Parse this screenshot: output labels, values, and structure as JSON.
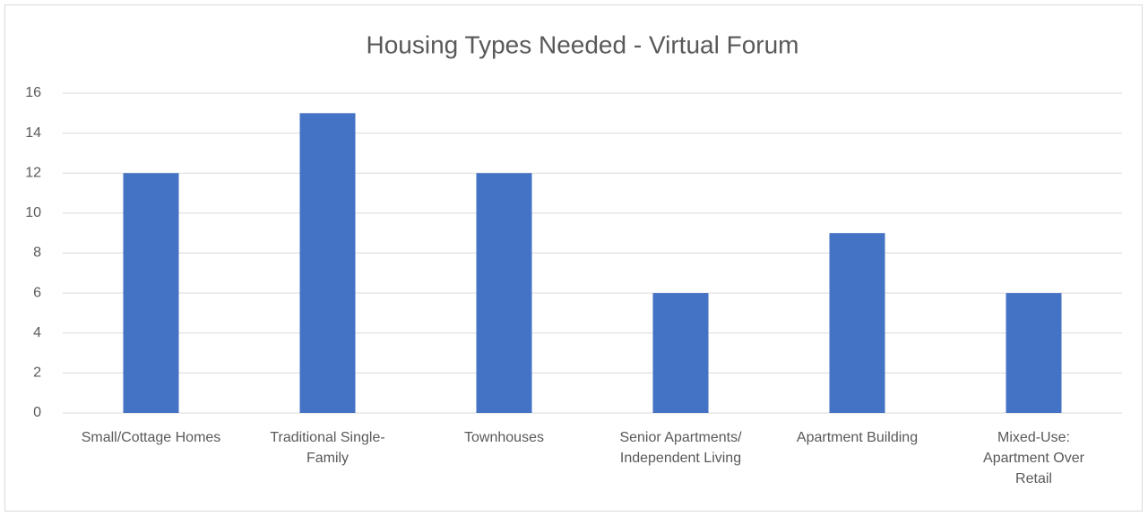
{
  "chart_data": {
    "type": "bar",
    "title": "Housing Types Needed - Virtual Forum",
    "categories": [
      "Small/Cottage Homes",
      "Traditional Single-Family",
      "Townhouses",
      "Senior Apartments/ Independent Living",
      "Apartment Building",
      "Mixed-Use: Apartment Over Retail"
    ],
    "values": [
      12,
      15,
      12,
      6,
      9,
      6
    ],
    "color": "#4472c4",
    "ylim": [
      0,
      16
    ],
    "yticks": [
      0,
      2,
      4,
      6,
      8,
      10,
      12,
      14,
      16
    ],
    "grid": true
  }
}
